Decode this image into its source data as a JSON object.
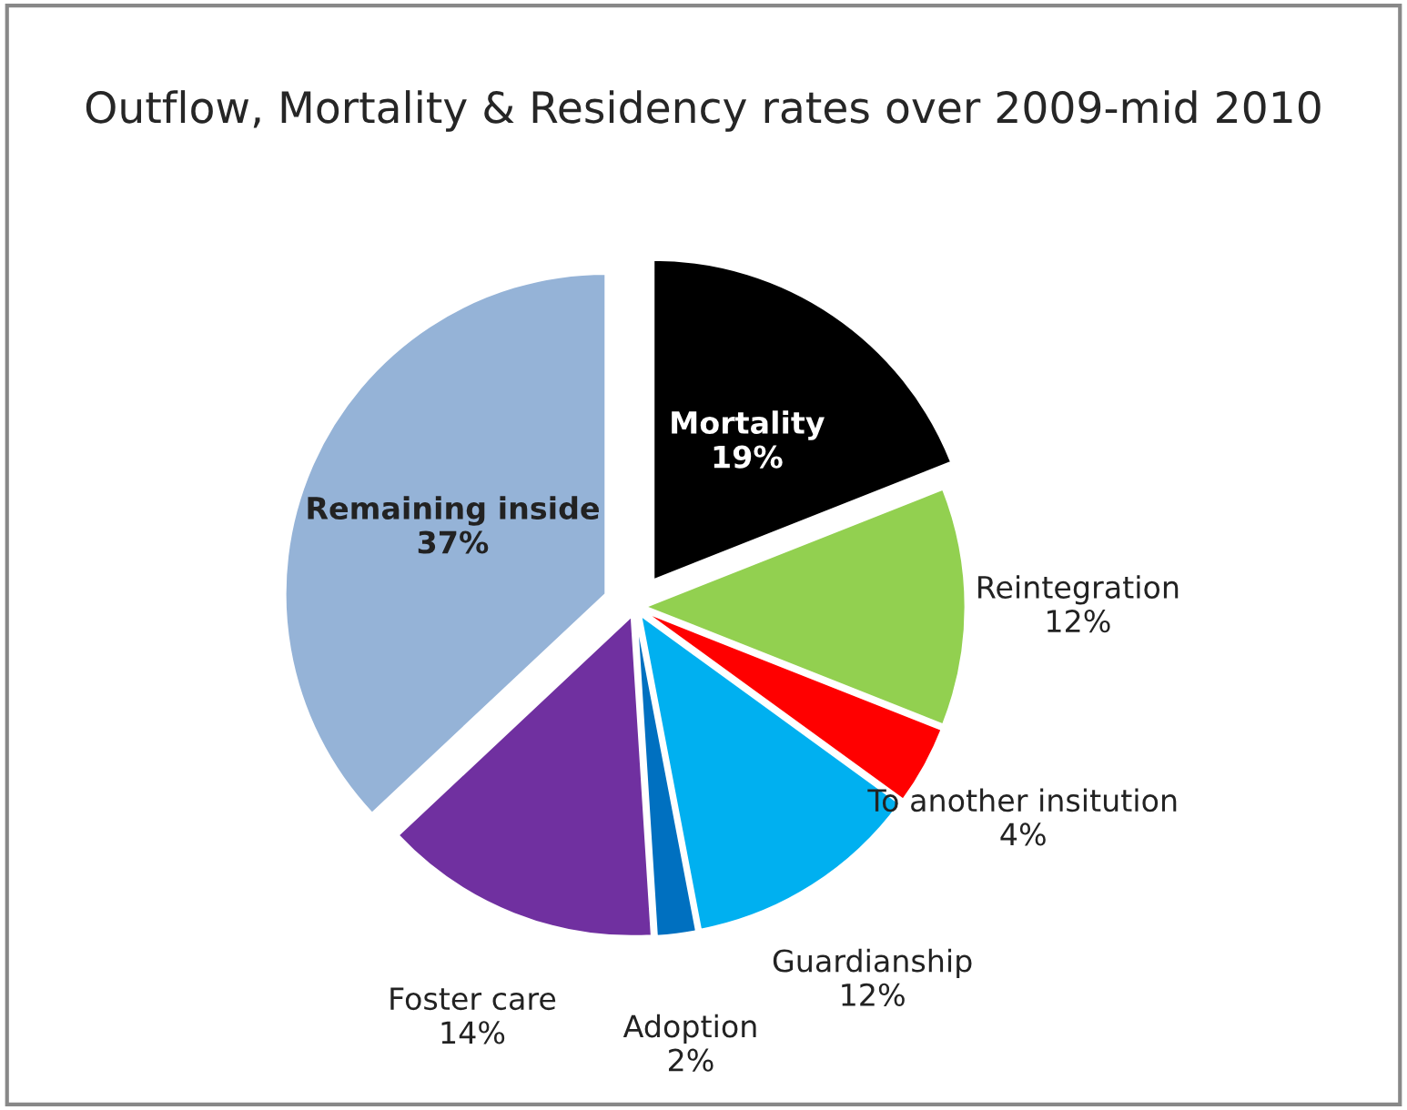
{
  "chart_data": {
    "type": "pie",
    "title": "Outflow, Mortality & Residency rates over 2009-mid 2010",
    "categories": [
      "Mortality",
      "Reintegration",
      "To another insitution",
      "Guardianship",
      "Adoption",
      "Foster care",
      "Remaining inside"
    ],
    "values": [
      19,
      12,
      4,
      12,
      2,
      14,
      37
    ],
    "colors": [
      "#000000",
      "#92d050",
      "#ff0000",
      "#00b0f0",
      "#0070c0",
      "#7030a0",
      "#95b3d7"
    ],
    "value_labels": [
      "19%",
      "12%",
      "4%",
      "12%",
      "2%",
      "14%",
      "37%"
    ],
    "legend": false
  }
}
